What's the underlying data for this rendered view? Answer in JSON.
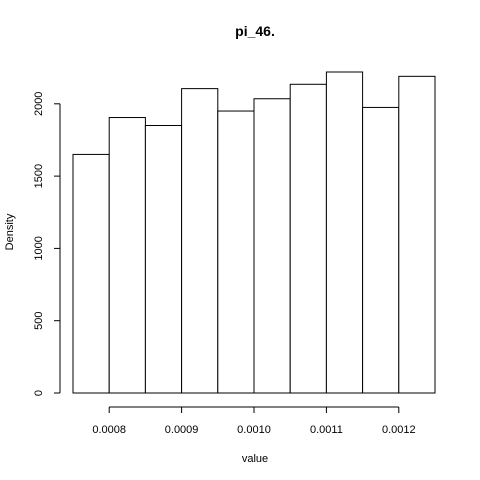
{
  "chart_data": {
    "type": "bar",
    "title": "pi_46.",
    "xlabel": "value",
    "ylabel": "Density",
    "bin_width": 5e-05,
    "bins": [
      {
        "start": 0.00075,
        "end": 0.0008,
        "density": 1650
      },
      {
        "start": 0.0008,
        "end": 0.00085,
        "density": 1905
      },
      {
        "start": 0.00085,
        "end": 0.0009,
        "density": 1850
      },
      {
        "start": 0.0009,
        "end": 0.00095,
        "density": 2105
      },
      {
        "start": 0.00095,
        "end": 0.001,
        "density": 1950
      },
      {
        "start": 0.001,
        "end": 0.00105,
        "density": 2035
      },
      {
        "start": 0.00105,
        "end": 0.0011,
        "density": 2135
      },
      {
        "start": 0.0011,
        "end": 0.00115,
        "density": 2220
      },
      {
        "start": 0.00115,
        "end": 0.0012,
        "density": 1975
      },
      {
        "start": 0.0012,
        "end": 0.00125,
        "density": 2190
      }
    ],
    "xlim": [
      0.00075,
      0.00125
    ],
    "ylim": [
      0,
      2220
    ],
    "x_ticks": [
      0.0008,
      0.0009,
      0.001,
      0.0011,
      0.0012
    ],
    "x_tick_labels": [
      "0.0008",
      "0.0009",
      "0.0010",
      "0.0011",
      "0.0012"
    ],
    "y_ticks": [
      0,
      500,
      1000,
      1500,
      2000
    ],
    "y_tick_labels": [
      "0",
      "500",
      "1000",
      "1500",
      "2000"
    ],
    "grid": false,
    "legend": "none"
  }
}
